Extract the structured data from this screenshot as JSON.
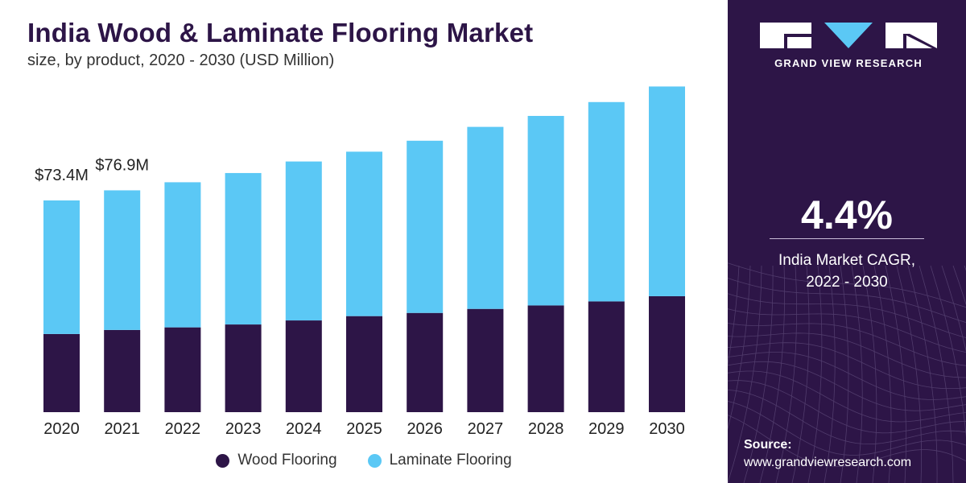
{
  "chart_data": {
    "type": "bar",
    "stacked": true,
    "title": "India Wood & Laminate Flooring Market",
    "subtitle": "size, by product, 2020 - 2030 (USD Million)",
    "categories": [
      "2020",
      "2021",
      "2022",
      "2023",
      "2024",
      "2025",
      "2026",
      "2027",
      "2028",
      "2029",
      "2030"
    ],
    "series": [
      {
        "name": "Wood Flooring",
        "color": "#2d1547",
        "values": [
          27.1,
          28.5,
          29.4,
          30.4,
          31.8,
          33.3,
          34.4,
          35.8,
          37.0,
          38.4,
          40.2
        ]
      },
      {
        "name": "Laminate Flooring",
        "color": "#5bc8f5",
        "values": [
          46.3,
          48.4,
          50.3,
          52.5,
          55.1,
          57.0,
          59.7,
          63.1,
          65.7,
          69.1,
          72.7
        ]
      }
    ],
    "data_labels": [
      {
        "category": "2020",
        "text": "$73.4M"
      },
      {
        "category": "2021",
        "text": "$76.9M"
      }
    ],
    "ylim": [
      0,
      120
    ],
    "grid": false,
    "legend_position": "bottom"
  },
  "side_panel": {
    "brand": "GRAND VIEW RESEARCH",
    "cagr_value": "4.4%",
    "cagr_label_line1": "India Market CAGR,",
    "cagr_label_line2": "2022 - 2030",
    "source_title": "Source:",
    "source_url": "www.grandviewresearch.com"
  }
}
